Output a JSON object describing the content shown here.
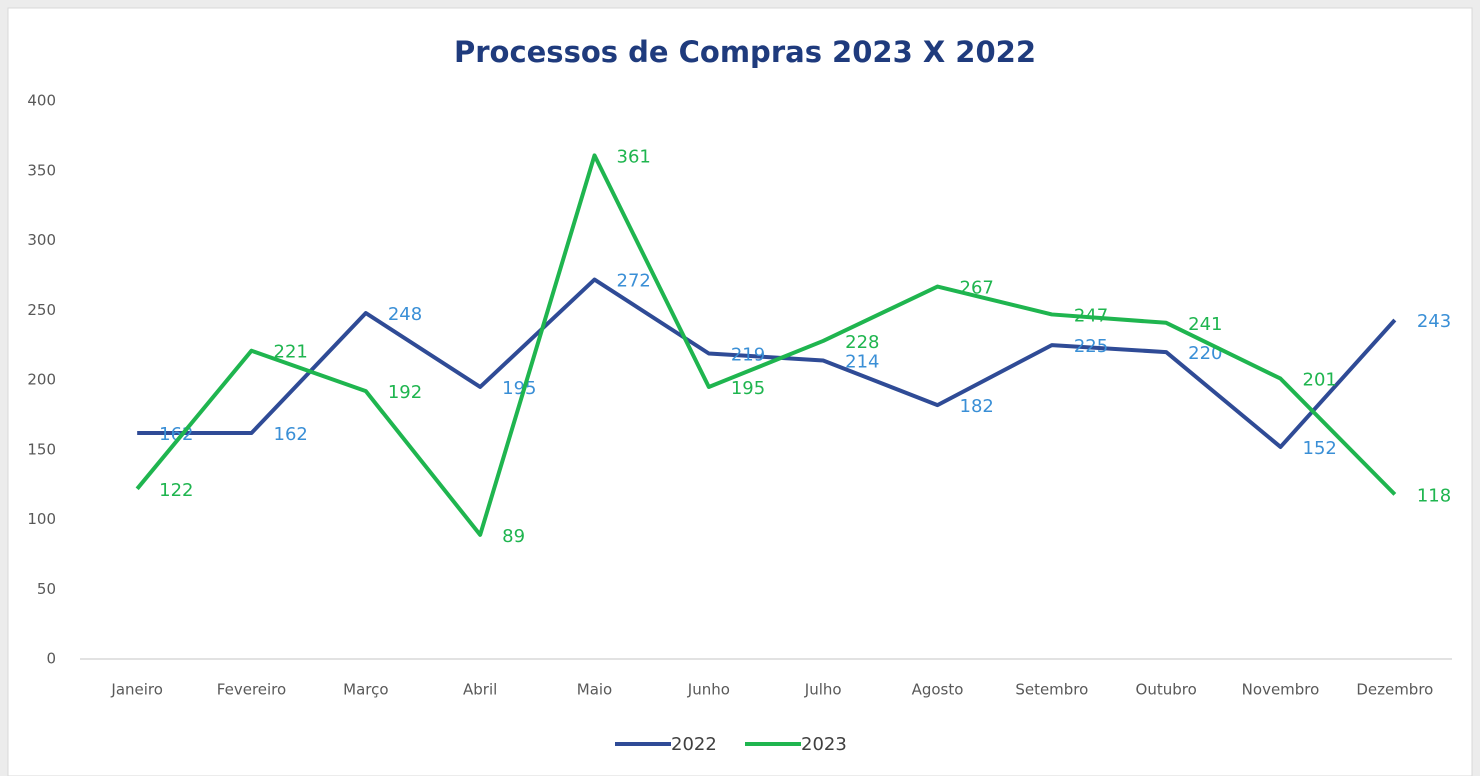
{
  "chart_data": {
    "type": "line",
    "title": "Processos de Compras 2023 X 2022",
    "categories": [
      "Janeiro",
      "Fevereiro",
      "Março",
      "Abril",
      "Maio",
      "Junho",
      "Julho",
      "Agosto",
      "Setembro",
      "Outubro",
      "Novembro",
      "Dezembro"
    ],
    "series": [
      {
        "name": "2022",
        "color": "#2f4b96",
        "label_color": "#3a8fd6",
        "values": [
          162,
          162,
          248,
          195,
          272,
          219,
          214,
          182,
          225,
          220,
          152,
          243
        ]
      },
      {
        "name": "2023",
        "color": "#1fb54f",
        "label_color": "#1fb54f",
        "values": [
          122,
          221,
          192,
          89,
          361,
          195,
          228,
          267,
          247,
          241,
          201,
          118
        ]
      }
    ],
    "ylim": [
      0,
      400
    ],
    "yticks": [
      0,
      50,
      100,
      150,
      200,
      250,
      300,
      350,
      400
    ],
    "grid": false,
    "legend": "bottom"
  }
}
